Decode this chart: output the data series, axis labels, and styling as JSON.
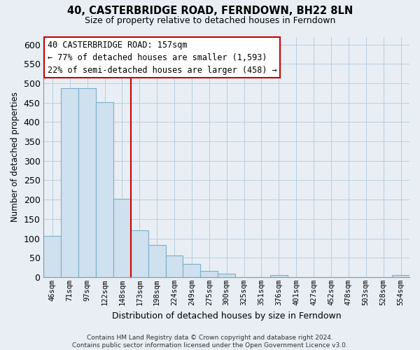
{
  "title": "40, CASTERBRIDGE ROAD, FERNDOWN, BH22 8LN",
  "subtitle": "Size of property relative to detached houses in Ferndown",
  "xlabel": "Distribution of detached houses by size in Ferndown",
  "ylabel": "Number of detached properties",
  "bar_labels": [
    "46sqm",
    "71sqm",
    "97sqm",
    "122sqm",
    "148sqm",
    "173sqm",
    "198sqm",
    "224sqm",
    "249sqm",
    "275sqm",
    "300sqm",
    "325sqm",
    "351sqm",
    "376sqm",
    "401sqm",
    "427sqm",
    "452sqm",
    "478sqm",
    "503sqm",
    "528sqm",
    "554sqm"
  ],
  "bar_values": [
    107,
    487,
    487,
    452,
    202,
    121,
    82,
    56,
    35,
    16,
    8,
    0,
    0,
    5,
    0,
    0,
    0,
    0,
    0,
    0,
    6
  ],
  "bar_color": "#cfe0ee",
  "bar_edge_color": "#7aafc8",
  "vline_x": 4.5,
  "vline_color": "#cc0000",
  "annotation_line1": "40 CASTERBRIDGE ROAD: 157sqm",
  "annotation_line2": "← 77% of detached houses are smaller (1,593)",
  "annotation_line3": "22% of semi-detached houses are larger (458) →",
  "annotation_box_color": "#ffffff",
  "annotation_box_edge": "#cc0000",
  "ylim": [
    0,
    620
  ],
  "yticks": [
    0,
    50,
    100,
    150,
    200,
    250,
    300,
    350,
    400,
    450,
    500,
    550,
    600
  ],
  "footer": "Contains HM Land Registry data © Crown copyright and database right 2024.\nContains public sector information licensed under the Open Government Licence v3.0.",
  "bg_color": "#e8eef4",
  "plot_bg_color": "#e8eef4",
  "grid_color": "#b8cfe0"
}
